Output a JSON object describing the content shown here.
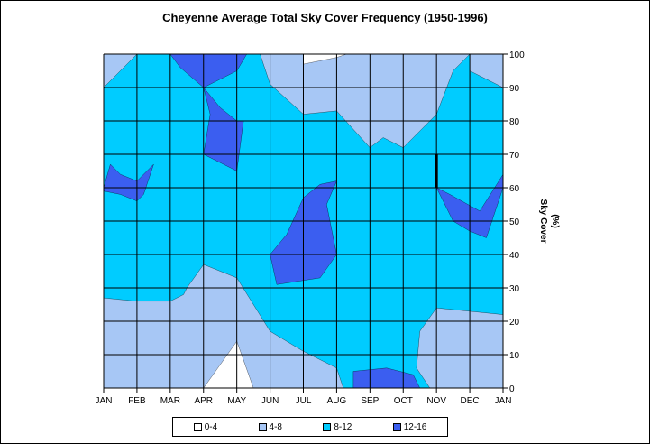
{
  "chart_data": {
    "type": "area",
    "subtype": "filled-contour",
    "title": "Cheyenne Average Total Sky Cover Frequency (1950-1996)",
    "xlabel": "",
    "ylabel": "Sky Cover (%)",
    "x": [
      "JAN",
      "FEB",
      "MAR",
      "APR",
      "MAY",
      "JUN",
      "JUL",
      "AUG",
      "SEP",
      "OCT",
      "NOV",
      "DEC",
      "JAN"
    ],
    "y_ticks": [
      0,
      10,
      20,
      30,
      40,
      50,
      60,
      70,
      80,
      90,
      100
    ],
    "ylim": [
      0,
      100
    ],
    "grid": true,
    "legend": {
      "position": "bottom",
      "entries": [
        "0-4",
        "4-8",
        "8-12",
        "12-16"
      ]
    },
    "colors": {
      "0-4": "#ffffff",
      "4-8": "#a7c7f5",
      "8-12": "#00ccff",
      "12-16": "#3b5ef0"
    },
    "regions": [
      {
        "class": "4-8",
        "points": [
          [
            0,
            0
          ],
          [
            0,
            27
          ],
          [
            1,
            26
          ],
          [
            2,
            26
          ],
          [
            2.4,
            28
          ],
          [
            2.5,
            30
          ],
          [
            3,
            37
          ],
          [
            4,
            33
          ],
          [
            5,
            17
          ],
          [
            6,
            11
          ],
          [
            7,
            6
          ],
          [
            7.2,
            0
          ]
        ]
      },
      {
        "class": "0-4",
        "points": [
          [
            3,
            0
          ],
          [
            4,
            14
          ],
          [
            4.5,
            0
          ]
        ]
      },
      {
        "class": "4-8",
        "points": [
          [
            9.8,
            0
          ],
          [
            9.4,
            6
          ],
          [
            9.5,
            17
          ],
          [
            10,
            24
          ],
          [
            11,
            23
          ],
          [
            12,
            22
          ],
          [
            12,
            0
          ]
        ]
      },
      {
        "class": "4-8",
        "points": [
          [
            0,
            90
          ],
          [
            0,
            100
          ],
          [
            1,
            100
          ]
        ]
      },
      {
        "class": "4-8",
        "points": [
          [
            4.7,
            100
          ],
          [
            5,
            91
          ],
          [
            6,
            82
          ],
          [
            7,
            83
          ],
          [
            8,
            72
          ],
          [
            8.4,
            75
          ],
          [
            9,
            72
          ],
          [
            10,
            82
          ],
          [
            10.5,
            95
          ],
          [
            11,
            100
          ]
        ]
      },
      {
        "class": "0-4",
        "points": [
          [
            6,
            100
          ],
          [
            6,
            97
          ],
          [
            7,
            99
          ],
          [
            7.3,
            100
          ]
        ]
      },
      {
        "class": "4-8",
        "points": [
          [
            11,
            100
          ],
          [
            11,
            95
          ],
          [
            12,
            90
          ],
          [
            12,
            100
          ]
        ]
      },
      {
        "class": "12-16",
        "points": [
          [
            2,
            100
          ],
          [
            2.3,
            96
          ],
          [
            3,
            90
          ],
          [
            4,
            95
          ],
          [
            4.3,
            100
          ]
        ]
      },
      {
        "class": "12-16",
        "points": [
          [
            3,
            90
          ],
          [
            3.5,
            84
          ],
          [
            4,
            80
          ],
          [
            4.2,
            80
          ],
          [
            4,
            65
          ],
          [
            3,
            70
          ],
          [
            3.2,
            82
          ]
        ]
      },
      {
        "class": "12-16",
        "points": [
          [
            0,
            60
          ],
          [
            0.2,
            67
          ],
          [
            0.5,
            64
          ],
          [
            1,
            62
          ],
          [
            1.5,
            67
          ],
          [
            1.2,
            58
          ],
          [
            1,
            56
          ],
          [
            0.5,
            58
          ],
          [
            0,
            59
          ]
        ]
      },
      {
        "class": "12-16",
        "points": [
          [
            5,
            40
          ],
          [
            5.5,
            46
          ],
          [
            6,
            57
          ],
          [
            6.5,
            61
          ],
          [
            7,
            62
          ],
          [
            6.7,
            55
          ],
          [
            7,
            40
          ],
          [
            6.5,
            33
          ],
          [
            5.2,
            31
          ]
        ]
      },
      {
        "class": "12-16",
        "points": [
          [
            10,
            60
          ],
          [
            10.5,
            50
          ],
          [
            11,
            47
          ],
          [
            11.5,
            45
          ],
          [
            12,
            60
          ],
          [
            12,
            64
          ],
          [
            11.3,
            53
          ],
          [
            10.4,
            58
          ]
        ]
      },
      {
        "class": "12-16",
        "points": [
          [
            7.5,
            0
          ],
          [
            7.5,
            5
          ],
          [
            8.5,
            6
          ],
          [
            9.3,
            4
          ],
          [
            9.5,
            0
          ]
        ]
      }
    ],
    "boundary_mark": {
      "x": 10,
      "y_from": 60,
      "y_to": 70
    }
  }
}
